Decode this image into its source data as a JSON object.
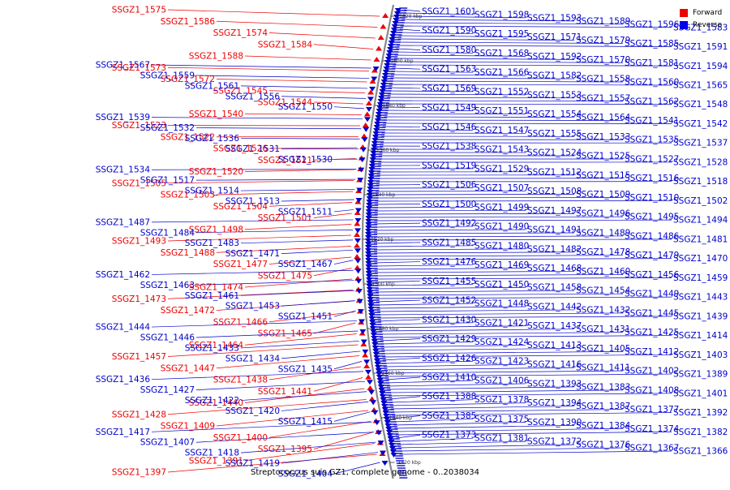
{
  "caption": "Streptococcus suis GZ1, complete genome - 0..2038034",
  "legend": [
    {
      "label": "Forward",
      "color": "#ee0000"
    },
    {
      "label": "Reverse",
      "color": "#0000ee"
    }
  ],
  "colors": {
    "forward": "#ee0000",
    "reverse": "#0000cc",
    "backbone": "#888888"
  },
  "ticks": [
    "1620 kbp",
    "1600 kbp",
    "1580 kbp",
    "1560 kbp",
    "1540 kbp",
    "1520 kbp",
    "1500 kbp",
    "1480 kbp",
    "1460 kbp",
    "1440 kbp",
    "1420 kbp"
  ],
  "forward_left": [
    "SSGZ1_1575",
    "SSGZ1_1586",
    "SSGZ1_1574",
    "SSGZ1_1584",
    "SSGZ1_1588",
    "SSGZ1_1573",
    "SSGZ1_1572",
    "SSGZ1_1545",
    "SSGZ1_1544",
    "SSGZ1_1540",
    "SSGZ1_1523",
    "SSGZ1_1522",
    "SSGZ1_1526",
    "SSGZ1_1521",
    "SSGZ1_1520",
    "SSGZ1_1505",
    "SSGZ1_1503",
    "SSGZ1_1504",
    "SSGZ1_1501",
    "SSGZ1_1498",
    "SSGZ1_1493",
    "SSGZ1_1488",
    "SSGZ1_1477",
    "SSGZ1_1475",
    "SSGZ1_1474",
    "SSGZ1_1473",
    "SSGZ1_1472",
    "SSGZ1_1466",
    "SSGZ1_1465",
    "SSGZ1_1464",
    "SSGZ1_1457",
    "SSGZ1_1447",
    "SSGZ1_1438",
    "SSGZ1_1441",
    "SSGZ1_1440",
    "SSGZ1_1428",
    "SSGZ1_1409",
    "SSGZ1_1400",
    "SSGZ1_1395",
    "SSGZ1_1391",
    "SSGZ1_1397"
  ],
  "reverse_left": [
    "SSGZ1_1567",
    "SSGZ1_1559",
    "SSGZ1_1561",
    "SSGZ1_1556",
    "SSGZ1_1550",
    "SSGZ1_1539",
    "SSGZ1_1532",
    "SSGZ1_1536",
    "SSGZ1_1531",
    "SSGZ1_1530",
    "SSGZ1_1534",
    "SSGZ1_1517",
    "SSGZ1_1514",
    "SSGZ1_1513",
    "SSGZ1_1511",
    "SSGZ1_1487",
    "SSGZ1_1484",
    "SSGZ1_1483",
    "SSGZ1_1471",
    "SSGZ1_1467",
    "SSGZ1_1462",
    "SSGZ1_1463",
    "SSGZ1_1461",
    "SSGZ1_1453",
    "SSGZ1_1451",
    "SSGZ1_1444",
    "SSGZ1_1446",
    "SSGZ1_1433",
    "SSGZ1_1434",
    "SSGZ1_1435",
    "SSGZ1_1436",
    "SSGZ1_1427",
    "SSGZ1_1422",
    "SSGZ1_1420",
    "SSGZ1_1415",
    "SSGZ1_1417",
    "SSGZ1_1407",
    "SSGZ1_1418",
    "SSGZ1_1419",
    "SSGZ1_1404"
  ],
  "reverse_right": [
    "SSGZ1_1601",
    "SSGZ1_1598",
    "SSGZ1_1593",
    "SSGZ1_1589",
    "SSGZ1_1596",
    "SSGZ1_1583",
    "SSGZ1_1590",
    "SSGZ1_1595",
    "SSGZ1_1571",
    "SSGZ1_1579",
    "SSGZ1_1585",
    "SSGZ1_1591",
    "SSGZ1_1580",
    "SSGZ1_1568",
    "SSGZ1_1592",
    "SSGZ1_1570",
    "SSGZ1_1581",
    "SSGZ1_1594",
    "SSGZ1_1563",
    "SSGZ1_1566",
    "SSGZ1_1582",
    "SSGZ1_1558",
    "SSGZ1_1560",
    "SSGZ1_1565",
    "SSGZ1_1569",
    "SSGZ1_1552",
    "SSGZ1_1553",
    "SSGZ1_1557",
    "SSGZ1_1562",
    "SSGZ1_1548",
    "SSGZ1_1549",
    "SSGZ1_1551",
    "SSGZ1_1554",
    "SSGZ1_1564",
    "SSGZ1_1541",
    "SSGZ1_1542",
    "SSGZ1_1546",
    "SSGZ1_1547",
    "SSGZ1_1555",
    "SSGZ1_1533",
    "SSGZ1_1535",
    "SSGZ1_1537",
    "SSGZ1_1538",
    "SSGZ1_1543",
    "SSGZ1_1524",
    "SSGZ1_1525",
    "SSGZ1_1527",
    "SSGZ1_1528",
    "SSGZ1_1519",
    "SSGZ1_1529",
    "SSGZ1_1512",
    "SSGZ1_1515",
    "SSGZ1_1516",
    "SSGZ1_1518",
    "SSGZ1_1506",
    "SSGZ1_1507",
    "SSGZ1_1508",
    "SSGZ1_1509",
    "SSGZ1_1510",
    "SSGZ1_1502",
    "SSGZ1_1500",
    "SSGZ1_1499",
    "SSGZ1_1497",
    "SSGZ1_1496",
    "SSGZ1_1495",
    "SSGZ1_1494",
    "SSGZ1_1492",
    "SSGZ1_1490",
    "SSGZ1_1491",
    "SSGZ1_1489",
    "SSGZ1_1486",
    "SSGZ1_1481",
    "SSGZ1_1485",
    "SSGZ1_1480",
    "SSGZ1_1482",
    "SSGZ1_1478",
    "SSGZ1_1479",
    "SSGZ1_1470",
    "SSGZ1_1476",
    "SSGZ1_1469",
    "SSGZ1_1468",
    "SSGZ1_1460",
    "SSGZ1_1456",
    "SSGZ1_1459",
    "SSGZ1_1455",
    "SSGZ1_1450",
    "SSGZ1_1458",
    "SSGZ1_1454",
    "SSGZ1_1449",
    "SSGZ1_1443",
    "SSGZ1_1452",
    "SSGZ1_1448",
    "SSGZ1_1442",
    "SSGZ1_1432",
    "SSGZ1_1445",
    "SSGZ1_1439",
    "SSGZ1_1430",
    "SSGZ1_1421",
    "SSGZ1_1437",
    "SSGZ1_1431",
    "SSGZ1_1425",
    "SSGZ1_1414",
    "SSGZ1_1429",
    "SSGZ1_1424",
    "SSGZ1_1413",
    "SSGZ1_1405",
    "SSGZ1_1412",
    "SSGZ1_1403",
    "SSGZ1_1426",
    "SSGZ1_1423",
    "SSGZ1_1416",
    "SSGZ1_1411",
    "SSGZ1_1402",
    "SSGZ1_1389",
    "SSGZ1_1410",
    "SSGZ1_1406",
    "SSGZ1_1393",
    "SSGZ1_1383",
    "SSGZ1_1408",
    "SSGZ1_1401",
    "SSGZ1_1388",
    "SSGZ1_1378",
    "SSGZ1_1394",
    "SSGZ1_1387",
    "SSGZ1_1377",
    "SSGZ1_1392",
    "SSGZ1_1385",
    "SSGZ1_1375",
    "SSGZ1_1390",
    "SSGZ1_1384",
    "SSGZ1_1374",
    "SSGZ1_1382",
    "SSGZ1_1373",
    "SSGZ1_1381",
    "SSGZ1_1372",
    "SSGZ1_1376",
    "SSGZ1_1367",
    "SSGZ1_1366"
  ]
}
